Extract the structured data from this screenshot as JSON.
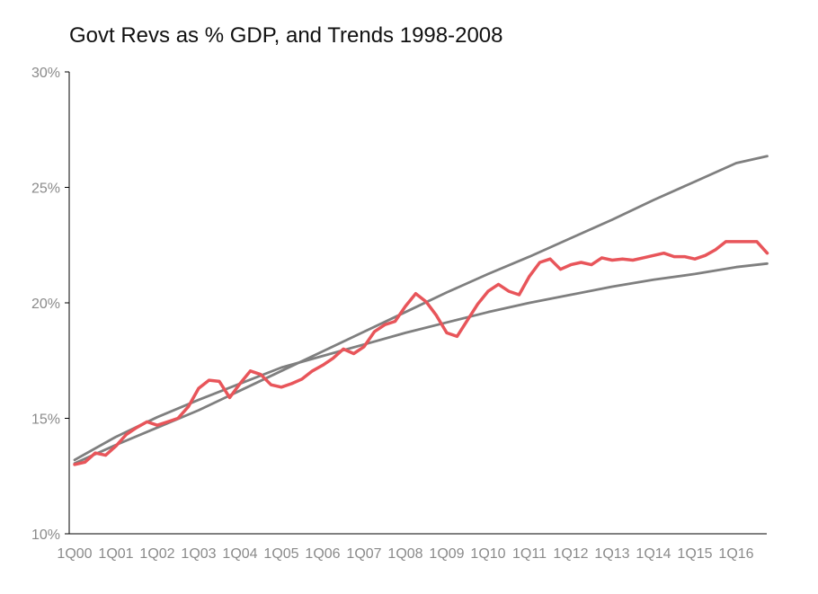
{
  "chart_data": {
    "type": "line",
    "title": "Govt Revs as % GDP, and Trends 1998-2008",
    "xlabel": "",
    "ylabel": "",
    "ylim": [
      10,
      30
    ],
    "yticks": [
      "10%",
      "15%",
      "20%",
      "25%",
      "30%"
    ],
    "ytick_values": [
      10,
      15,
      20,
      25,
      30
    ],
    "x_tick_labels": [
      "1Q00",
      "1Q01",
      "1Q02",
      "1Q03",
      "1Q04",
      "1Q05",
      "1Q06",
      "1Q07",
      "1Q08",
      "1Q09",
      "1Q10",
      "1Q11",
      "1Q12",
      "1Q13",
      "1Q14",
      "1Q15",
      "1Q16"
    ],
    "grid": false,
    "legend": "none",
    "colors": {
      "actual": "#e8555a",
      "trend_high": "#7f7f7f",
      "trend_low": "#7f7f7f",
      "axis": "#000000",
      "tick_text": "#8a8a8a"
    },
    "x_range": [
      0,
      68
    ],
    "series": [
      {
        "key": "actual",
        "x": [
          0,
          1,
          2,
          3,
          4,
          5,
          6,
          7,
          8,
          9,
          10,
          11,
          12,
          13,
          14,
          15,
          16,
          17,
          18,
          19,
          20,
          21,
          22,
          23,
          24,
          25,
          26,
          27,
          28,
          29,
          30,
          31,
          32,
          33,
          34,
          35,
          36,
          37,
          38,
          39,
          40,
          41,
          42,
          43,
          44,
          45,
          46,
          47,
          48,
          49,
          50,
          51,
          52,
          53,
          54,
          55,
          56,
          57,
          58,
          59,
          60,
          61,
          62,
          63,
          64,
          65,
          66,
          67
        ],
        "values": [
          13.0,
          13.1,
          13.5,
          13.4,
          13.8,
          14.3,
          14.6,
          14.85,
          14.7,
          14.85,
          15.0,
          15.5,
          16.3,
          16.65,
          16.6,
          15.9,
          16.5,
          17.05,
          16.9,
          16.45,
          16.35,
          16.5,
          16.7,
          17.05,
          17.3,
          17.6,
          18.0,
          17.8,
          18.1,
          18.75,
          19.05,
          19.2,
          19.85,
          20.4,
          20.05,
          19.45,
          18.7,
          18.55,
          19.25,
          19.95,
          20.5,
          20.8,
          20.5,
          20.35,
          21.15,
          21.75,
          21.9,
          21.45,
          21.65,
          21.75,
          21.65,
          21.95,
          21.85,
          21.9,
          21.85,
          21.95,
          22.05,
          22.15,
          22.0,
          22.0,
          21.9,
          22.05,
          22.3,
          22.65,
          22.65,
          22.65,
          22.65,
          22.15
        ]
      },
      {
        "key": "trend_high",
        "x": [
          0,
          4,
          8,
          12,
          16,
          20,
          24,
          28,
          32,
          36,
          40,
          44,
          48,
          52,
          56,
          60,
          64,
          67
        ],
        "values": [
          13.05,
          13.85,
          14.6,
          15.35,
          16.2,
          17.05,
          17.9,
          18.75,
          19.6,
          20.45,
          21.25,
          22.0,
          22.8,
          23.6,
          24.45,
          25.25,
          26.05,
          26.35
        ]
      },
      {
        "key": "trend_low",
        "x": [
          0,
          4,
          8,
          12,
          16,
          20,
          24,
          28,
          32,
          36,
          40,
          44,
          48,
          52,
          56,
          60,
          64,
          67
        ],
        "values": [
          13.2,
          14.2,
          15.05,
          15.8,
          16.5,
          17.2,
          17.7,
          18.2,
          18.7,
          19.15,
          19.6,
          20.0,
          20.35,
          20.7,
          21.0,
          21.25,
          21.55,
          21.7
        ]
      }
    ]
  }
}
